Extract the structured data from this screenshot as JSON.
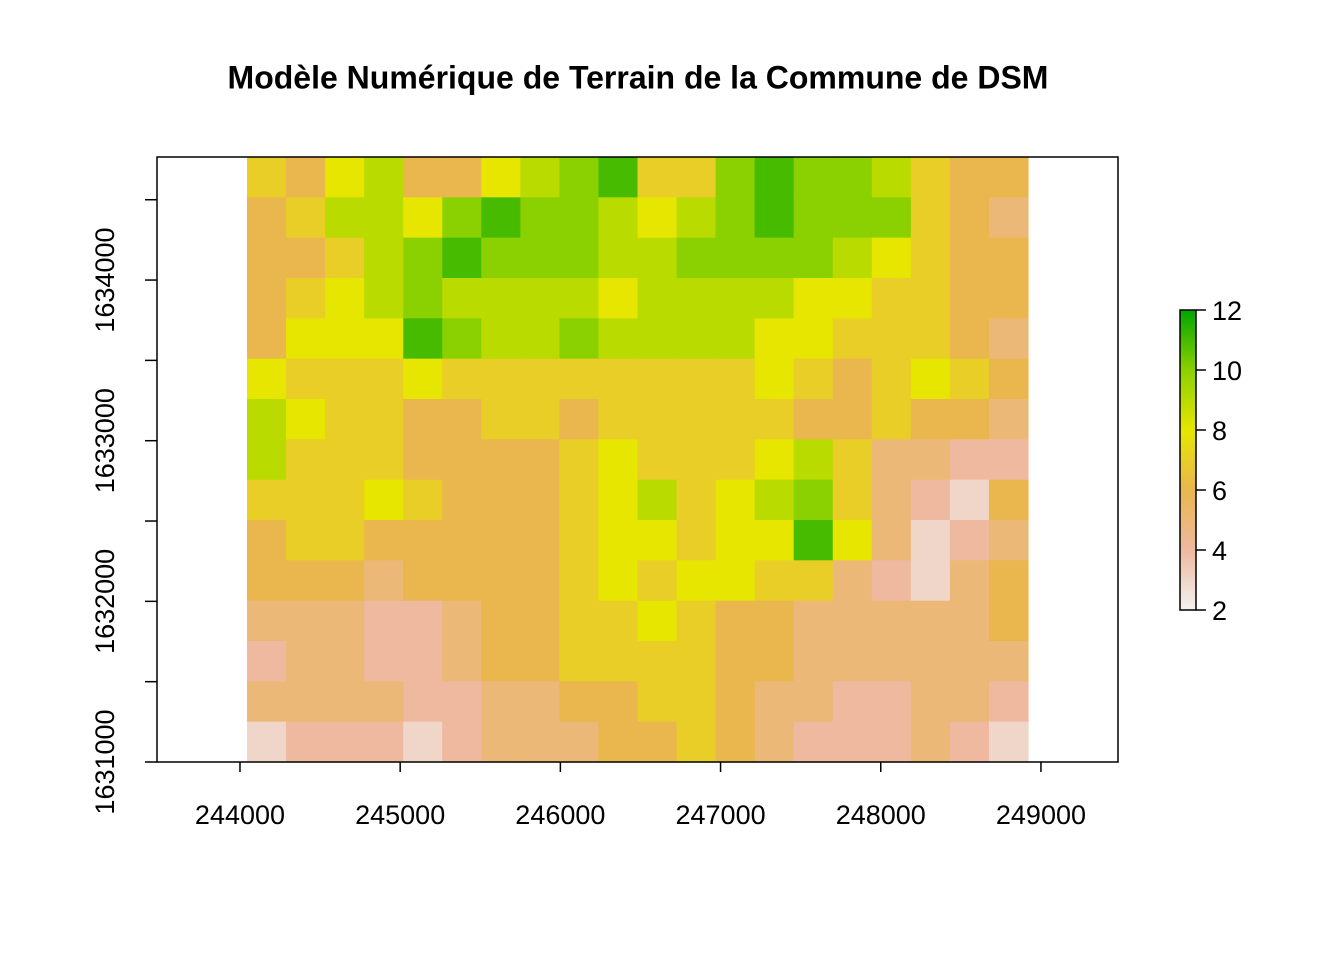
{
  "chart_data": {
    "type": "raster",
    "title": "Modèle Numérique de Terrain de la Commune de DSM",
    "xlim": [
      243482,
      249481
    ],
    "ylim": [
      1631000,
      1634766
    ],
    "xticks": [
      244000,
      245000,
      246000,
      247000,
      248000,
      249000
    ],
    "yticks": [
      1631000,
      {
        "value": 1631500,
        "label": null
      },
      1632000,
      {
        "value": 1632500,
        "label": null
      },
      1633000,
      {
        "value": 1633500,
        "label": null
      },
      1634000,
      {
        "value": 1634500,
        "label": null
      }
    ],
    "x_extent": [
      244044,
      248919
    ],
    "y_extent": [
      1631000,
      1634766
    ],
    "zlim": [
      2,
      12
    ],
    "zticks": [
      2,
      4,
      6,
      8,
      10,
      12
    ],
    "colors": [
      "#F2F2F2",
      "#EEB99F",
      "#EAB64E",
      "#E6E600",
      "#8BD000",
      "#00A600"
    ],
    "values": [
      [
        7,
        6,
        8,
        9,
        6,
        6,
        8,
        9,
        10,
        11,
        7,
        7,
        10,
        11,
        10,
        10,
        9,
        7,
        6,
        6
      ],
      [
        6,
        7,
        9,
        9,
        8,
        10,
        11,
        10,
        10,
        9,
        8,
        9,
        10,
        11,
        10,
        10,
        10,
        7,
        6,
        5
      ],
      [
        6,
        6,
        7,
        9,
        10,
        11,
        10,
        10,
        10,
        9,
        9,
        10,
        10,
        10,
        10,
        9,
        8,
        7,
        6,
        6
      ],
      [
        6,
        7,
        8,
        9,
        10,
        9,
        9,
        9,
        9,
        8,
        9,
        9,
        9,
        9,
        8,
        8,
        7,
        7,
        6,
        6
      ],
      [
        6,
        8,
        8,
        8,
        11,
        10,
        9,
        9,
        10,
        9,
        9,
        9,
        9,
        8,
        8,
        7,
        7,
        7,
        6,
        5
      ],
      [
        8,
        7,
        7,
        7,
        8,
        7,
        7,
        7,
        7,
        7,
        7,
        7,
        7,
        8,
        7,
        6,
        7,
        8,
        7,
        6
      ],
      [
        9,
        8,
        7,
        7,
        6,
        6,
        7,
        7,
        6,
        7,
        7,
        7,
        7,
        7,
        6,
        6,
        7,
        6,
        6,
        5
      ],
      [
        9,
        7,
        7,
        7,
        6,
        6,
        6,
        6,
        7,
        8,
        7,
        7,
        7,
        8,
        9,
        7,
        5,
        5,
        4,
        4
      ],
      [
        7,
        7,
        7,
        8,
        7,
        6,
        6,
        6,
        7,
        8,
        9,
        7,
        8,
        9,
        10,
        7,
        5,
        4,
        3,
        6
      ],
      [
        6,
        7,
        7,
        6,
        6,
        6,
        6,
        6,
        7,
        8,
        8,
        7,
        8,
        8,
        11,
        8,
        5,
        3,
        4,
        5
      ],
      [
        6,
        6,
        6,
        5,
        6,
        6,
        6,
        6,
        7,
        8,
        7,
        8,
        8,
        7,
        7,
        5,
        4,
        3,
        5,
        6
      ],
      [
        5,
        5,
        5,
        4,
        4,
        5,
        6,
        6,
        7,
        7,
        8,
        7,
        6,
        6,
        5,
        5,
        5,
        5,
        5,
        6
      ],
      [
        4,
        5,
        5,
        4,
        4,
        5,
        6,
        6,
        7,
        7,
        7,
        7,
        6,
        6,
        5,
        5,
        5,
        5,
        5,
        5
      ],
      [
        5,
        5,
        5,
        5,
        4,
        4,
        5,
        5,
        6,
        6,
        7,
        7,
        6,
        5,
        5,
        4,
        4,
        5,
        5,
        4
      ],
      [
        3,
        4,
        4,
        4,
        3,
        4,
        5,
        5,
        5,
        6,
        6,
        7,
        6,
        5,
        4,
        4,
        4,
        5,
        4,
        3
      ]
    ]
  }
}
